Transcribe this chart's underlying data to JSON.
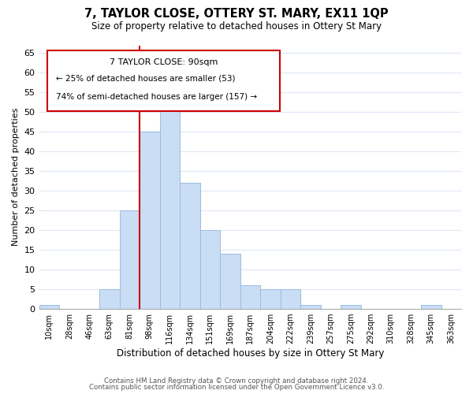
{
  "title": "7, TAYLOR CLOSE, OTTERY ST. MARY, EX11 1QP",
  "subtitle": "Size of property relative to detached houses in Ottery St Mary",
  "xlabel": "Distribution of detached houses by size in Ottery St Mary",
  "ylabel": "Number of detached properties",
  "bar_labels": [
    "10sqm",
    "28sqm",
    "46sqm",
    "63sqm",
    "81sqm",
    "98sqm",
    "116sqm",
    "134sqm",
    "151sqm",
    "169sqm",
    "187sqm",
    "204sqm",
    "222sqm",
    "239sqm",
    "257sqm",
    "275sqm",
    "292sqm",
    "310sqm",
    "328sqm",
    "345sqm",
    "363sqm"
  ],
  "bar_values": [
    1,
    0,
    0,
    5,
    25,
    45,
    51,
    32,
    20,
    14,
    6,
    5,
    5,
    1,
    0,
    1,
    0,
    0,
    0,
    1,
    0
  ],
  "bar_color": "#c9ddf5",
  "bar_edge_color": "#9bbce0",
  "vline_color": "#cc0000",
  "ylim": [
    0,
    67
  ],
  "yticks": [
    0,
    5,
    10,
    15,
    20,
    25,
    30,
    35,
    40,
    45,
    50,
    55,
    60,
    65
  ],
  "annotation_title": "7 TAYLOR CLOSE: 90sqm",
  "annotation_line1": "← 25% of detached houses are smaller (53)",
  "annotation_line2": "74% of semi-detached houses are larger (157) →",
  "footer_line1": "Contains HM Land Registry data © Crown copyright and database right 2024.",
  "footer_line2": "Contains public sector information licensed under the Open Government Licence v3.0.",
  "background_color": "#ffffff",
  "grid_color": "#dce8f5"
}
